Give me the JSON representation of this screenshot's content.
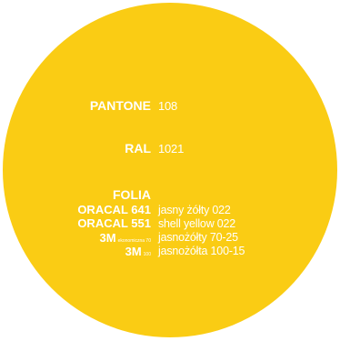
{
  "colors": {
    "swatch": "#FACC14",
    "text": "#FFFFFF",
    "background": "#FFFFFF"
  },
  "pantone": {
    "label": "PANTONE",
    "value": "108"
  },
  "ral": {
    "label": "RAL",
    "value": "1021"
  },
  "folia": {
    "heading": "FOLIA",
    "items": [
      {
        "label": "ORACAL 641",
        "sub": "",
        "value": "jasny żółty 022"
      },
      {
        "label": "ORACAL 551",
        "sub": "",
        "value": "shell yellow 022"
      },
      {
        "label": "3M",
        "sub": "ekonomiczna 70",
        "value": "jasnożółty 70-25"
      },
      {
        "label": "3M",
        "sub": "100",
        "value": "jasnożółta 100-15"
      }
    ]
  }
}
